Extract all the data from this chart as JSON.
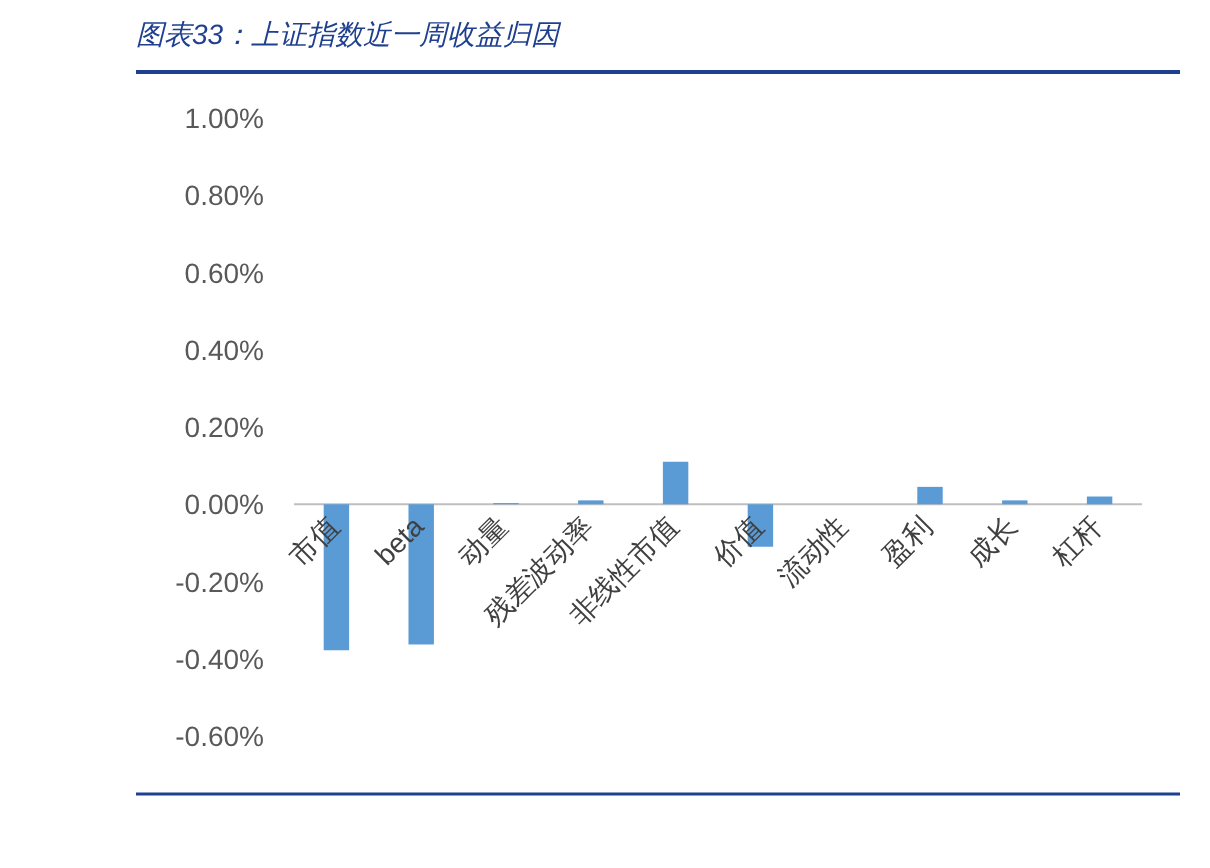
{
  "chart_data": {
    "type": "bar",
    "title": "图表33：上证指数近一周收益归因",
    "categories": [
      "市值",
      "beta",
      "动量",
      "残差波动率",
      "非线性市值",
      "价值",
      "流动性",
      "盈利",
      "成长",
      "杠杆"
    ],
    "values": [
      -0.378,
      -0.363,
      0.003,
      0.01,
      0.11,
      -0.11,
      0,
      0.045,
      0.01,
      0.02
    ],
    "color": "#5b9bd5",
    "ylim": [
      -0.6,
      1.0
    ],
    "yticks": [
      {
        "value": 1.0,
        "label": "1.00%"
      },
      {
        "value": 0.8,
        "label": "0.80%"
      },
      {
        "value": 0.6,
        "label": "0.60%"
      },
      {
        "value": 0.4,
        "label": "0.40%"
      },
      {
        "value": 0.2,
        "label": "0.20%"
      },
      {
        "value": 0,
        "label": "0.00%"
      },
      {
        "value": -0.2,
        "label": "-0.20%"
      },
      {
        "value": -0.4,
        "label": "-0.40%"
      },
      {
        "value": -0.6,
        "label": "-0.60%"
      }
    ],
    "grid": false
  }
}
